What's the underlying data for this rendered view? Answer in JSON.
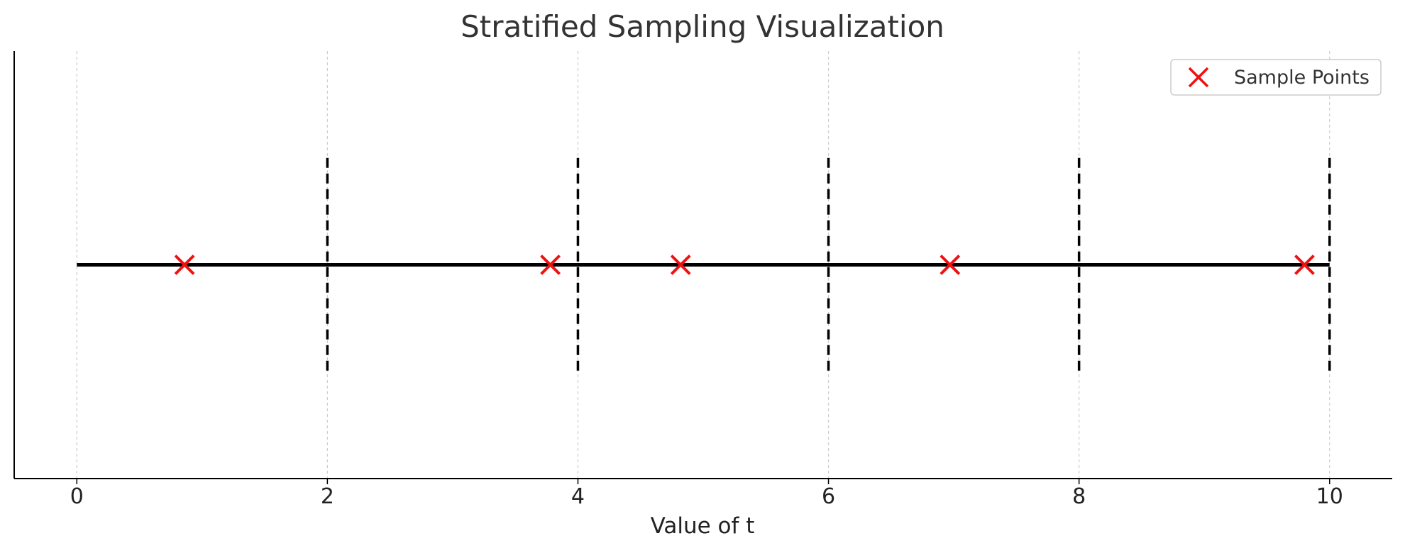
{
  "chart_data": {
    "type": "scatter",
    "title": "Stratified Sampling Visualization",
    "xlabel": "Value of t",
    "ylabel": "",
    "xlim": [
      -0.5,
      10.5
    ],
    "ylim": [
      -1,
      1
    ],
    "xticks": [
      0,
      2,
      4,
      6,
      8,
      10
    ],
    "xtick_labels": [
      "0",
      "2",
      "4",
      "6",
      "8",
      "10"
    ],
    "grid": "vertical dashed",
    "legend": "top-right",
    "line": {
      "x_start": 0,
      "x_end": 10,
      "y": 0
    },
    "strata_boundaries": [
      2,
      4,
      6,
      8,
      10
    ],
    "series": [
      {
        "name": "Sample Points",
        "marker": "x",
        "x": [
          0.86,
          3.78,
          4.82,
          6.97,
          9.8
        ],
        "y": [
          0,
          0,
          0,
          0,
          0
        ]
      }
    ]
  },
  "colors": {
    "sample_points": "#ee1111",
    "line": "#000000",
    "grid": "#cccccc",
    "title": "#333333"
  }
}
